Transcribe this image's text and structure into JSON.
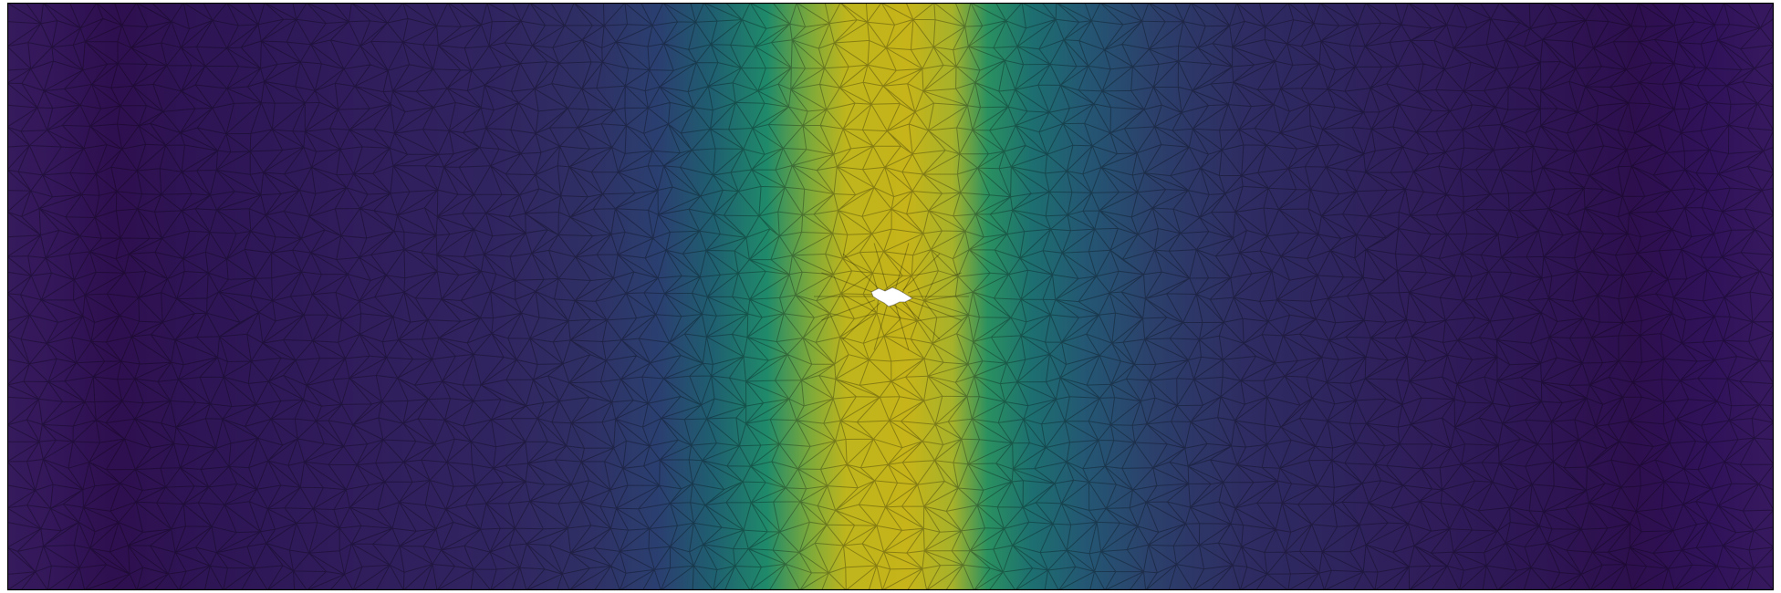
{
  "figure": {
    "kind": "finite-element mesh colour plot",
    "colormap": "viridis",
    "colormap_stops": [
      "#440154",
      "#3b528b",
      "#21918c",
      "#5ec962",
      "#c8c01a"
    ],
    "background_color": "#ffffff",
    "border_color": "#000000",
    "mesh_edge_color": "#000000",
    "has_hole": true,
    "text_labels_visible": false
  }
}
